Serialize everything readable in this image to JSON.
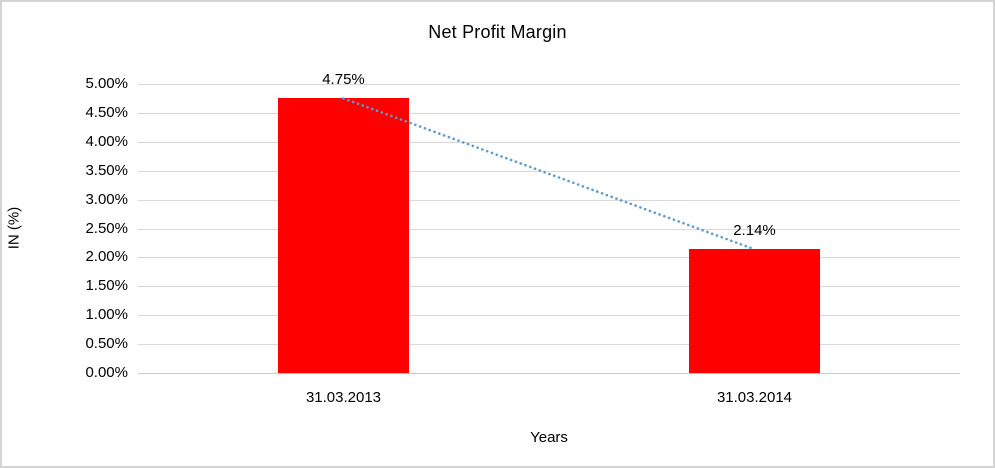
{
  "window": {
    "background_color": "#ffffff",
    "border_color": "#d4d4d4"
  },
  "chart_data": {
    "type": "bar",
    "title": "Net Profit Margin",
    "xlabel": "Years",
    "ylabel": "IN (%)",
    "categories": [
      "31.03.2013",
      "31.03.2014"
    ],
    "values": [
      4.75,
      2.14
    ],
    "data_labels": [
      "4.75%",
      "2.14%"
    ],
    "ylim": [
      0,
      5
    ],
    "ytick_step": 0.5,
    "ytick_labels": [
      "0.00%",
      "0.50%",
      "1.00%",
      "1.50%",
      "2.00%",
      "2.50%",
      "3.00%",
      "3.50%",
      "4.00%",
      "4.50%",
      "5.00%"
    ],
    "grid": true,
    "legend": "none",
    "bar_color": "#ff0000",
    "gridline_color": "#d9d9d9",
    "trendline": {
      "style": "dotted",
      "color": "#5b9bd5",
      "points": [
        4.75,
        2.14
      ]
    }
  }
}
